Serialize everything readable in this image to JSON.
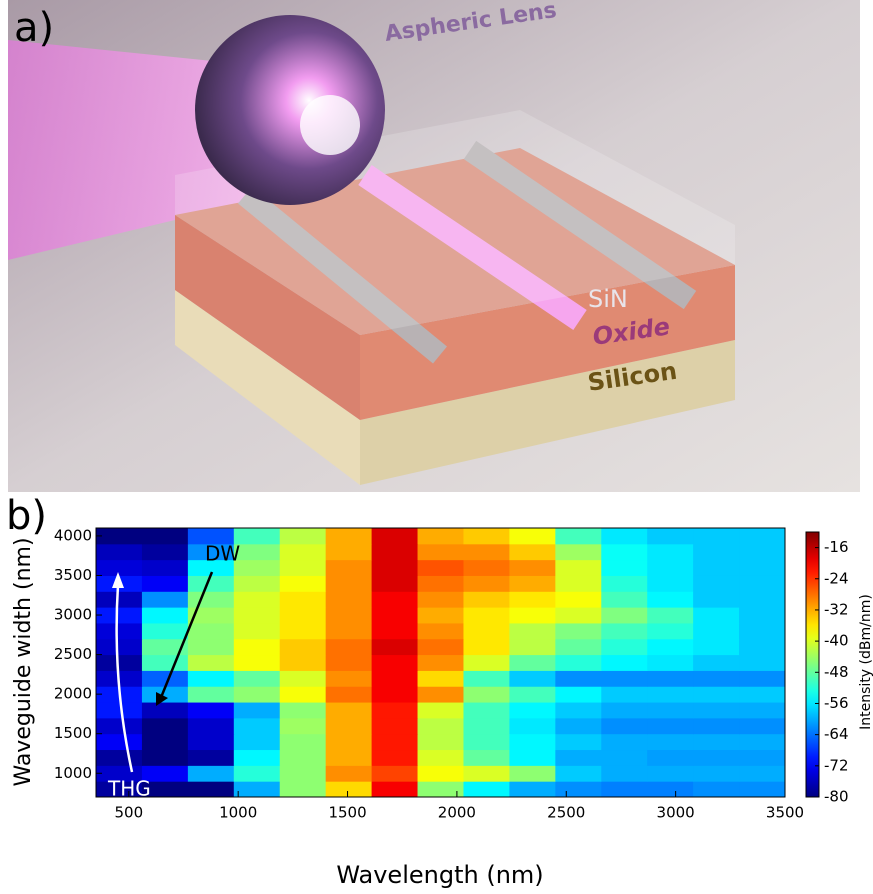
{
  "panel_a": {
    "label": "a)",
    "lens_label": "Aspheric Lens",
    "layers": [
      "SiN",
      "Oxide",
      "Silicon"
    ]
  },
  "chart_data": {
    "type": "heatmap",
    "panel_label": "b)",
    "xlabel": "Wavelength (nm)",
    "ylabel": "Waveguide width (nm)",
    "xlim": [
      350,
      3500
    ],
    "ylim": [
      700,
      4100
    ],
    "xticks": [
      500,
      1000,
      1500,
      2000,
      2500,
      3000,
      3500
    ],
    "yticks": [
      1000,
      1500,
      2000,
      2500,
      3000,
      3500,
      4000
    ],
    "xbins": [
      350,
      560,
      770,
      980,
      1190,
      1400,
      1610,
      1820,
      2030,
      2240,
      2450,
      2660,
      2870,
      3080,
      3290,
      3500
    ],
    "ybins": [
      700,
      900,
      1100,
      1300,
      1500,
      1700,
      1900,
      2100,
      2300,
      2500,
      2700,
      2900,
      3100,
      3300,
      3500,
      3700,
      3900,
      4100
    ],
    "colormap": "jet",
    "colorbar": {
      "label": "Intensity (dBm/nm)",
      "clim": [
        -80,
        -12
      ],
      "ticks": [
        -16,
        -24,
        -32,
        -40,
        -48,
        -56,
        -64,
        -72,
        -80
      ]
    },
    "annotations": [
      "DW",
      "THG"
    ],
    "values": [
      [
        -78,
        -80,
        -80,
        -60,
        -45,
        -35,
        -20,
        -45,
        -55,
        -60,
        -62,
        -63,
        -63,
        -62,
        -62
      ],
      [
        -75,
        -72,
        -60,
        -52,
        -45,
        -30,
        -25,
        -38,
        -40,
        -45,
        -58,
        -60,
        -60,
        -60,
        -60
      ],
      [
        -78,
        -80,
        -78,
        -55,
        -45,
        -32,
        -22,
        -40,
        -48,
        -55,
        -60,
        -60,
        -61,
        -61,
        -61
      ],
      [
        -72,
        -80,
        -75,
        -58,
        -45,
        -32,
        -22,
        -42,
        -50,
        -55,
        -58,
        -60,
        -60,
        -60,
        -60
      ],
      [
        -75,
        -80,
        -75,
        -58,
        -44,
        -32,
        -22,
        -42,
        -50,
        -56,
        -60,
        -62,
        -62,
        -62,
        -62
      ],
      [
        -70,
        -76,
        -72,
        -60,
        -45,
        -32,
        -22,
        -40,
        -50,
        -55,
        -58,
        -60,
        -60,
        -60,
        -60
      ],
      [
        -70,
        -60,
        -48,
        -45,
        -38,
        -28,
        -20,
        -30,
        -45,
        -50,
        -55,
        -58,
        -58,
        -58,
        -58
      ],
      [
        -75,
        -65,
        -55,
        -48,
        -40,
        -30,
        -20,
        -35,
        -50,
        -58,
        -62,
        -62,
        -62,
        -62,
        -62
      ],
      [
        -78,
        -50,
        -42,
        -38,
        -34,
        -28,
        -20,
        -30,
        -40,
        -48,
        -52,
        -55,
        -56,
        -58,
        -58
      ],
      [
        -75,
        -48,
        -45,
        -38,
        -34,
        -28,
        -18,
        -28,
        -36,
        -42,
        -48,
        -52,
        -55,
        -56,
        -58
      ],
      [
        -74,
        -52,
        -45,
        -40,
        -36,
        -30,
        -20,
        -30,
        -36,
        -42,
        -46,
        -50,
        -52,
        -56,
        -58
      ],
      [
        -70,
        -55,
        -44,
        -40,
        -36,
        -30,
        -20,
        -32,
        -36,
        -38,
        -40,
        -46,
        -50,
        -56,
        -58
      ],
      [
        -76,
        -62,
        -46,
        -40,
        -36,
        -30,
        -20,
        -30,
        -34,
        -36,
        -38,
        -50,
        -55,
        -58,
        -58
      ],
      [
        -70,
        -72,
        -50,
        -42,
        -38,
        -30,
        -18,
        -28,
        -30,
        -32,
        -40,
        -52,
        -56,
        -58,
        -58
      ],
      [
        -74,
        -75,
        -55,
        -44,
        -40,
        -30,
        -18,
        -26,
        -28,
        -30,
        -40,
        -54,
        -56,
        -58,
        -58
      ],
      [
        -76,
        -78,
        -62,
        -46,
        -40,
        -32,
        -18,
        -30,
        -30,
        -34,
        -44,
        -54,
        -56,
        -58,
        -58
      ],
      [
        -80,
        -80,
        -66,
        -50,
        -42,
        -32,
        -18,
        -32,
        -34,
        -38,
        -50,
        -56,
        -58,
        -58,
        -58
      ]
    ]
  }
}
